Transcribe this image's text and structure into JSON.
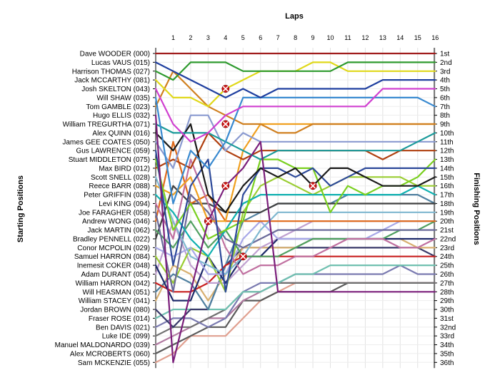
{
  "chart_data": {
    "type": "line",
    "title": "Laps",
    "y_left_label": "Starting Positions",
    "y_right_label": "Finishing Positions",
    "laps": [
      "1",
      "2",
      "3",
      "4",
      "5",
      "6",
      "7",
      "8",
      "9",
      "10",
      "11",
      "12",
      "13",
      "14",
      "15",
      "16"
    ],
    "starting_positions": [
      "Dave WOODER (000)",
      "Lucas VAUS (015)",
      "Harrison THOMAS (027)",
      "Jack MCCARTHY (081)",
      "Josh SKELTON (043)",
      "Will SHAW (035)",
      "Tom GAMBLE (023)",
      "Hugo ELLIS (032)",
      "William TREGURTHA (071)",
      "Alex QUINN (016)",
      "James GEE COATES (050)",
      "Gus LAWRENCE (059)",
      "Stuart MIDDLETON (075)",
      "Max BIRD (012)",
      "Scott SNELL (028)",
      "Reece BARR (088)",
      "Peter GRIFFIN (038)",
      "Levi KING (094)",
      "Joe FARAGHER (058)",
      "Andrew WONG (046)",
      "Jack MARTIN (062)",
      "Bradley PENNELL (022)",
      "Conor MCPOLIN (029)",
      "Samuel HARRON (084)",
      "Inemesit COKER (048)",
      "Adam DURANT (054)",
      "William HARRON (042)",
      "Will HEASMAN (051)",
      "William STACEY (041)",
      "Jordan BROWN (080)",
      "Fraser ROSE (014)",
      "Ben DAVIS (021)",
      "Luke IDE (099)",
      "Manuel MALDONARDO (039)",
      "Alex MCROBERTS (060)",
      "Sam MCKENZIE (055)"
    ],
    "finishing_positions": [
      "1st",
      "2nd",
      "3rd",
      "4th",
      "5th",
      "6th",
      "7th",
      "8th",
      "9th",
      "10th",
      "11th",
      "12th",
      "13th",
      "14th",
      "15th",
      "16th",
      "17th",
      "18th",
      "19th",
      "20th",
      "21st",
      "22nd",
      "23rd",
      "24th",
      "25th",
      "26th",
      "27th",
      "28th",
      "29th",
      "30th",
      "31st",
      "32nd",
      "33rd",
      "34th",
      "35th",
      "36th"
    ],
    "series": [
      {
        "color": "#a01c1c",
        "positions": [
          1,
          1,
          1,
          1,
          1,
          1,
          1,
          1,
          1,
          1,
          1,
          1,
          1,
          1,
          1,
          1,
          1
        ]
      },
      {
        "color": "#1f3f9f",
        "positions": [
          2,
          3,
          4,
          5,
          6,
          5,
          6,
          5,
          5,
          5,
          5,
          5,
          5,
          4,
          4,
          4,
          4
        ]
      },
      {
        "color": "#2e9a2e",
        "positions": [
          3,
          4,
          2,
          2,
          2,
          3,
          3,
          3,
          3,
          3,
          3,
          2,
          2,
          2,
          2,
          2,
          2
        ]
      },
      {
        "color": "#e0d81a",
        "positions": [
          4,
          6,
          6,
          7,
          5,
          4,
          3,
          3,
          3,
          2,
          2,
          3,
          3,
          3,
          3,
          3,
          3
        ]
      },
      {
        "color": "#d040d0",
        "positions": [
          5,
          9,
          11,
          10,
          8,
          7,
          7,
          7,
          7,
          7,
          7,
          7,
          7,
          5,
          5,
          5,
          5
        ]
      },
      {
        "color": "#3a8ad0",
        "positions": [
          6,
          18,
          12,
          14,
          11,
          6,
          6,
          6,
          6,
          6,
          6,
          6,
          6,
          6,
          6,
          6,
          7
        ]
      },
      {
        "color": "#d08020",
        "positions": [
          7,
          3,
          5,
          7,
          8,
          9,
          9,
          10,
          10,
          9,
          9,
          9,
          9,
          9,
          9,
          9,
          9
        ]
      },
      {
        "color": "#7b1f7b",
        "positions": [
          8,
          36,
          28,
          20,
          16,
          14,
          11,
          28,
          28,
          28,
          28,
          28,
          28,
          28,
          28,
          28,
          28
        ]
      },
      {
        "color": "#1a9a9a",
        "positions": [
          9,
          10,
          10,
          10,
          11,
          12,
          13,
          12,
          12,
          12,
          12,
          12,
          12,
          12,
          12,
          11,
          10
        ]
      },
      {
        "color": "#1a1a1a",
        "positions": [
          10,
          12,
          9,
          17,
          19,
          16,
          14,
          15,
          14,
          16,
          14,
          14,
          15,
          16,
          16,
          16,
          15
        ]
      },
      {
        "color": "#8a9ad0",
        "positions": [
          11,
          14,
          8,
          8,
          12,
          10,
          11,
          11,
          11,
          11,
          11,
          11,
          11,
          11,
          11,
          11,
          11
        ]
      },
      {
        "color": "#2e4a9a",
        "positions": [
          12,
          25,
          16,
          13,
          28,
          17,
          14,
          14,
          15,
          14,
          16,
          15,
          14,
          14,
          14,
          14,
          14
        ]
      },
      {
        "color": "#7ad020",
        "positions": [
          13,
          21,
          18,
          22,
          21,
          20,
          13,
          13,
          14,
          14,
          19,
          16,
          17,
          16,
          16,
          15,
          13
        ]
      },
      {
        "color": "#b04010",
        "positions": [
          14,
          13,
          14,
          10,
          12,
          13,
          12,
          12,
          12,
          12,
          12,
          12,
          12,
          13,
          12,
          12,
          12
        ]
      },
      {
        "color": "#80b8d0",
        "positions": [
          15,
          20,
          24,
          25,
          26,
          24,
          21,
          19,
          19,
          19,
          19,
          19,
          19,
          19,
          19,
          19,
          19
        ]
      },
      {
        "color": "#f0a020",
        "positions": [
          16,
          17,
          15,
          20,
          20,
          12,
          9,
          9,
          9,
          9,
          9,
          9,
          9,
          9,
          9,
          9,
          9
        ]
      },
      {
        "color": "#10b0b0",
        "positions": [
          17,
          19,
          22,
          24,
          21,
          18,
          17,
          17,
          17,
          17,
          17,
          17,
          17,
          17,
          17,
          16,
          17
        ]
      },
      {
        "color": "#c070a0",
        "positions": [
          18,
          22,
          13,
          18,
          23,
          26,
          25,
          25,
          24,
          24,
          23,
          22,
          22,
          22,
          23,
          23,
          22
        ]
      },
      {
        "color": "#6a6a9a",
        "positions": [
          19,
          28,
          17,
          19,
          22,
          23,
          22,
          21,
          21,
          21,
          21,
          21,
          21,
          21,
          21,
          21,
          21
        ]
      },
      {
        "color": "#e06a1a",
        "positions": [
          20,
          11,
          18,
          17,
          20,
          20,
          20,
          20,
          20,
          20,
          20,
          20,
          20,
          20,
          20,
          20,
          20
        ]
      },
      {
        "color": "#50a060",
        "positions": [
          21,
          23,
          20,
          23,
          21,
          24,
          24,
          24,
          23,
          22,
          22,
          22,
          22,
          22,
          21,
          21,
          20
        ]
      },
      {
        "color": "#404040",
        "positions": [
          22,
          16,
          18,
          18,
          19,
          19,
          19,
          18,
          18,
          18,
          18,
          18,
          18,
          18,
          18,
          18,
          18
        ]
      },
      {
        "color": "#a8a8e8",
        "positions": [
          23,
          24,
          23,
          26,
          26,
          22,
          20,
          22,
          22,
          22,
          22,
          22,
          22,
          21,
          20,
          20,
          20
        ]
      },
      {
        "color": "#9acd32",
        "positions": [
          24,
          27,
          23,
          24,
          28,
          19,
          16,
          15,
          16,
          17,
          16,
          15,
          15,
          15,
          15,
          16,
          16
        ]
      },
      {
        "color": "#1e2a6a",
        "positions": [
          25,
          29,
          29,
          24,
          27,
          24,
          24,
          22,
          22,
          22,
          22,
          22,
          22,
          22,
          22,
          22,
          22
        ]
      },
      {
        "color": "#c0a0d0",
        "positions": [
          26,
          20,
          25,
          27,
          27,
          25,
          23,
          22,
          21,
          20,
          20,
          20,
          20,
          20,
          20,
          20,
          20
        ]
      },
      {
        "color": "#c82020",
        "positions": [
          27,
          28,
          28,
          27,
          25,
          24,
          24,
          24,
          24,
          24,
          24,
          24,
          24,
          24,
          24,
          24,
          24
        ]
      },
      {
        "color": "#5080a0",
        "positions": [
          28,
          26,
          27,
          30,
          25,
          20,
          19,
          18,
          18,
          18,
          18,
          17,
          17,
          17,
          17,
          17,
          18
        ]
      },
      {
        "color": "#d8b070",
        "positions": [
          29,
          25,
          26,
          29,
          26,
          23,
          23,
          23,
          23,
          22,
          22,
          22,
          22,
          22,
          22,
          23,
          23
        ]
      },
      {
        "color": "#3a3a6a",
        "positions": [
          30,
          32,
          30,
          30,
          25,
          23,
          23,
          23,
          23,
          23,
          23,
          23,
          23,
          23,
          23,
          23,
          24
        ]
      },
      {
        "color": "#70c0b0",
        "positions": [
          31,
          30,
          30,
          30,
          30,
          28,
          28,
          27,
          26,
          26,
          25,
          25,
          25,
          25,
          25,
          25,
          25
        ]
      },
      {
        "color": "#7a7ab0",
        "positions": [
          32,
          31,
          31,
          32,
          31,
          28,
          27,
          27,
          26,
          26,
          26,
          26,
          26,
          26,
          25,
          26,
          26
        ]
      },
      {
        "color": "#707070",
        "positions": [
          33,
          32,
          32,
          31,
          30,
          28,
          28,
          27,
          27,
          27,
          27,
          27,
          27,
          27,
          27,
          27,
          27
        ]
      },
      {
        "color": "#b07aa0",
        "positions": [
          34,
          33,
          32,
          31,
          31,
          29,
          28,
          27,
          27,
          27,
          27,
          27,
          27,
          27,
          27,
          27,
          27
        ]
      },
      {
        "color": "#5a5a5a",
        "positions": [
          35,
          34,
          33,
          32,
          32,
          29,
          29,
          28,
          28,
          28,
          28,
          27,
          27,
          27,
          27,
          27,
          27
        ]
      },
      {
        "color": "#e0a090",
        "positions": [
          36,
          35,
          33,
          33,
          33,
          31,
          29,
          28,
          27,
          27,
          27,
          27,
          27,
          27,
          27,
          27,
          27
        ]
      }
    ],
    "markers": [
      {
        "series_color": "#d040d0",
        "lap": 4,
        "position": 5
      },
      {
        "series_color": "#1a9a9a",
        "lap": 4,
        "position": 9
      },
      {
        "series_color": "#f0a020",
        "lap": 4,
        "position": 16
      },
      {
        "series_color": "#9acd32",
        "lap": 9,
        "position": 16
      },
      {
        "series_color": "#e06a1a",
        "lap": 3,
        "position": 20
      },
      {
        "series_color": "#c82020",
        "lap": 5,
        "position": 24
      }
    ]
  }
}
